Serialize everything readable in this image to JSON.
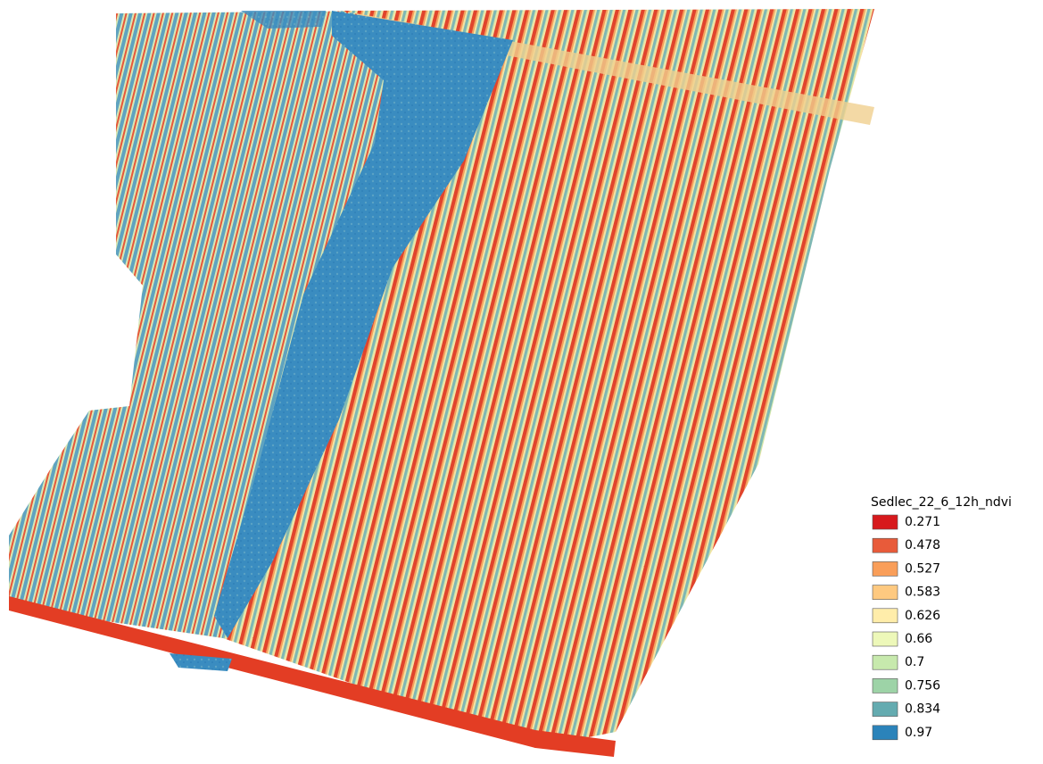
{
  "legend": {
    "title": "Sedlec_22_6_12h_ndvi",
    "items": [
      {
        "value": 0.271,
        "color": "#d7191c"
      },
      {
        "value": 0.478,
        "color": "#e85b3a"
      },
      {
        "value": 0.527,
        "color": "#f99e59"
      },
      {
        "value": 0.583,
        "color": "#fec980"
      },
      {
        "value": 0.626,
        "color": "#ffedaa"
      },
      {
        "value": 0.66,
        "color": "#edf8b9"
      },
      {
        "value": 0.7,
        "color": "#c7e9ad"
      },
      {
        "value": 0.756,
        "color": "#9dd3a7"
      },
      {
        "value": 0.834,
        "color": "#64abb0"
      },
      {
        "value": 0.97,
        "color": "#2b83ba"
      }
    ]
  }
}
